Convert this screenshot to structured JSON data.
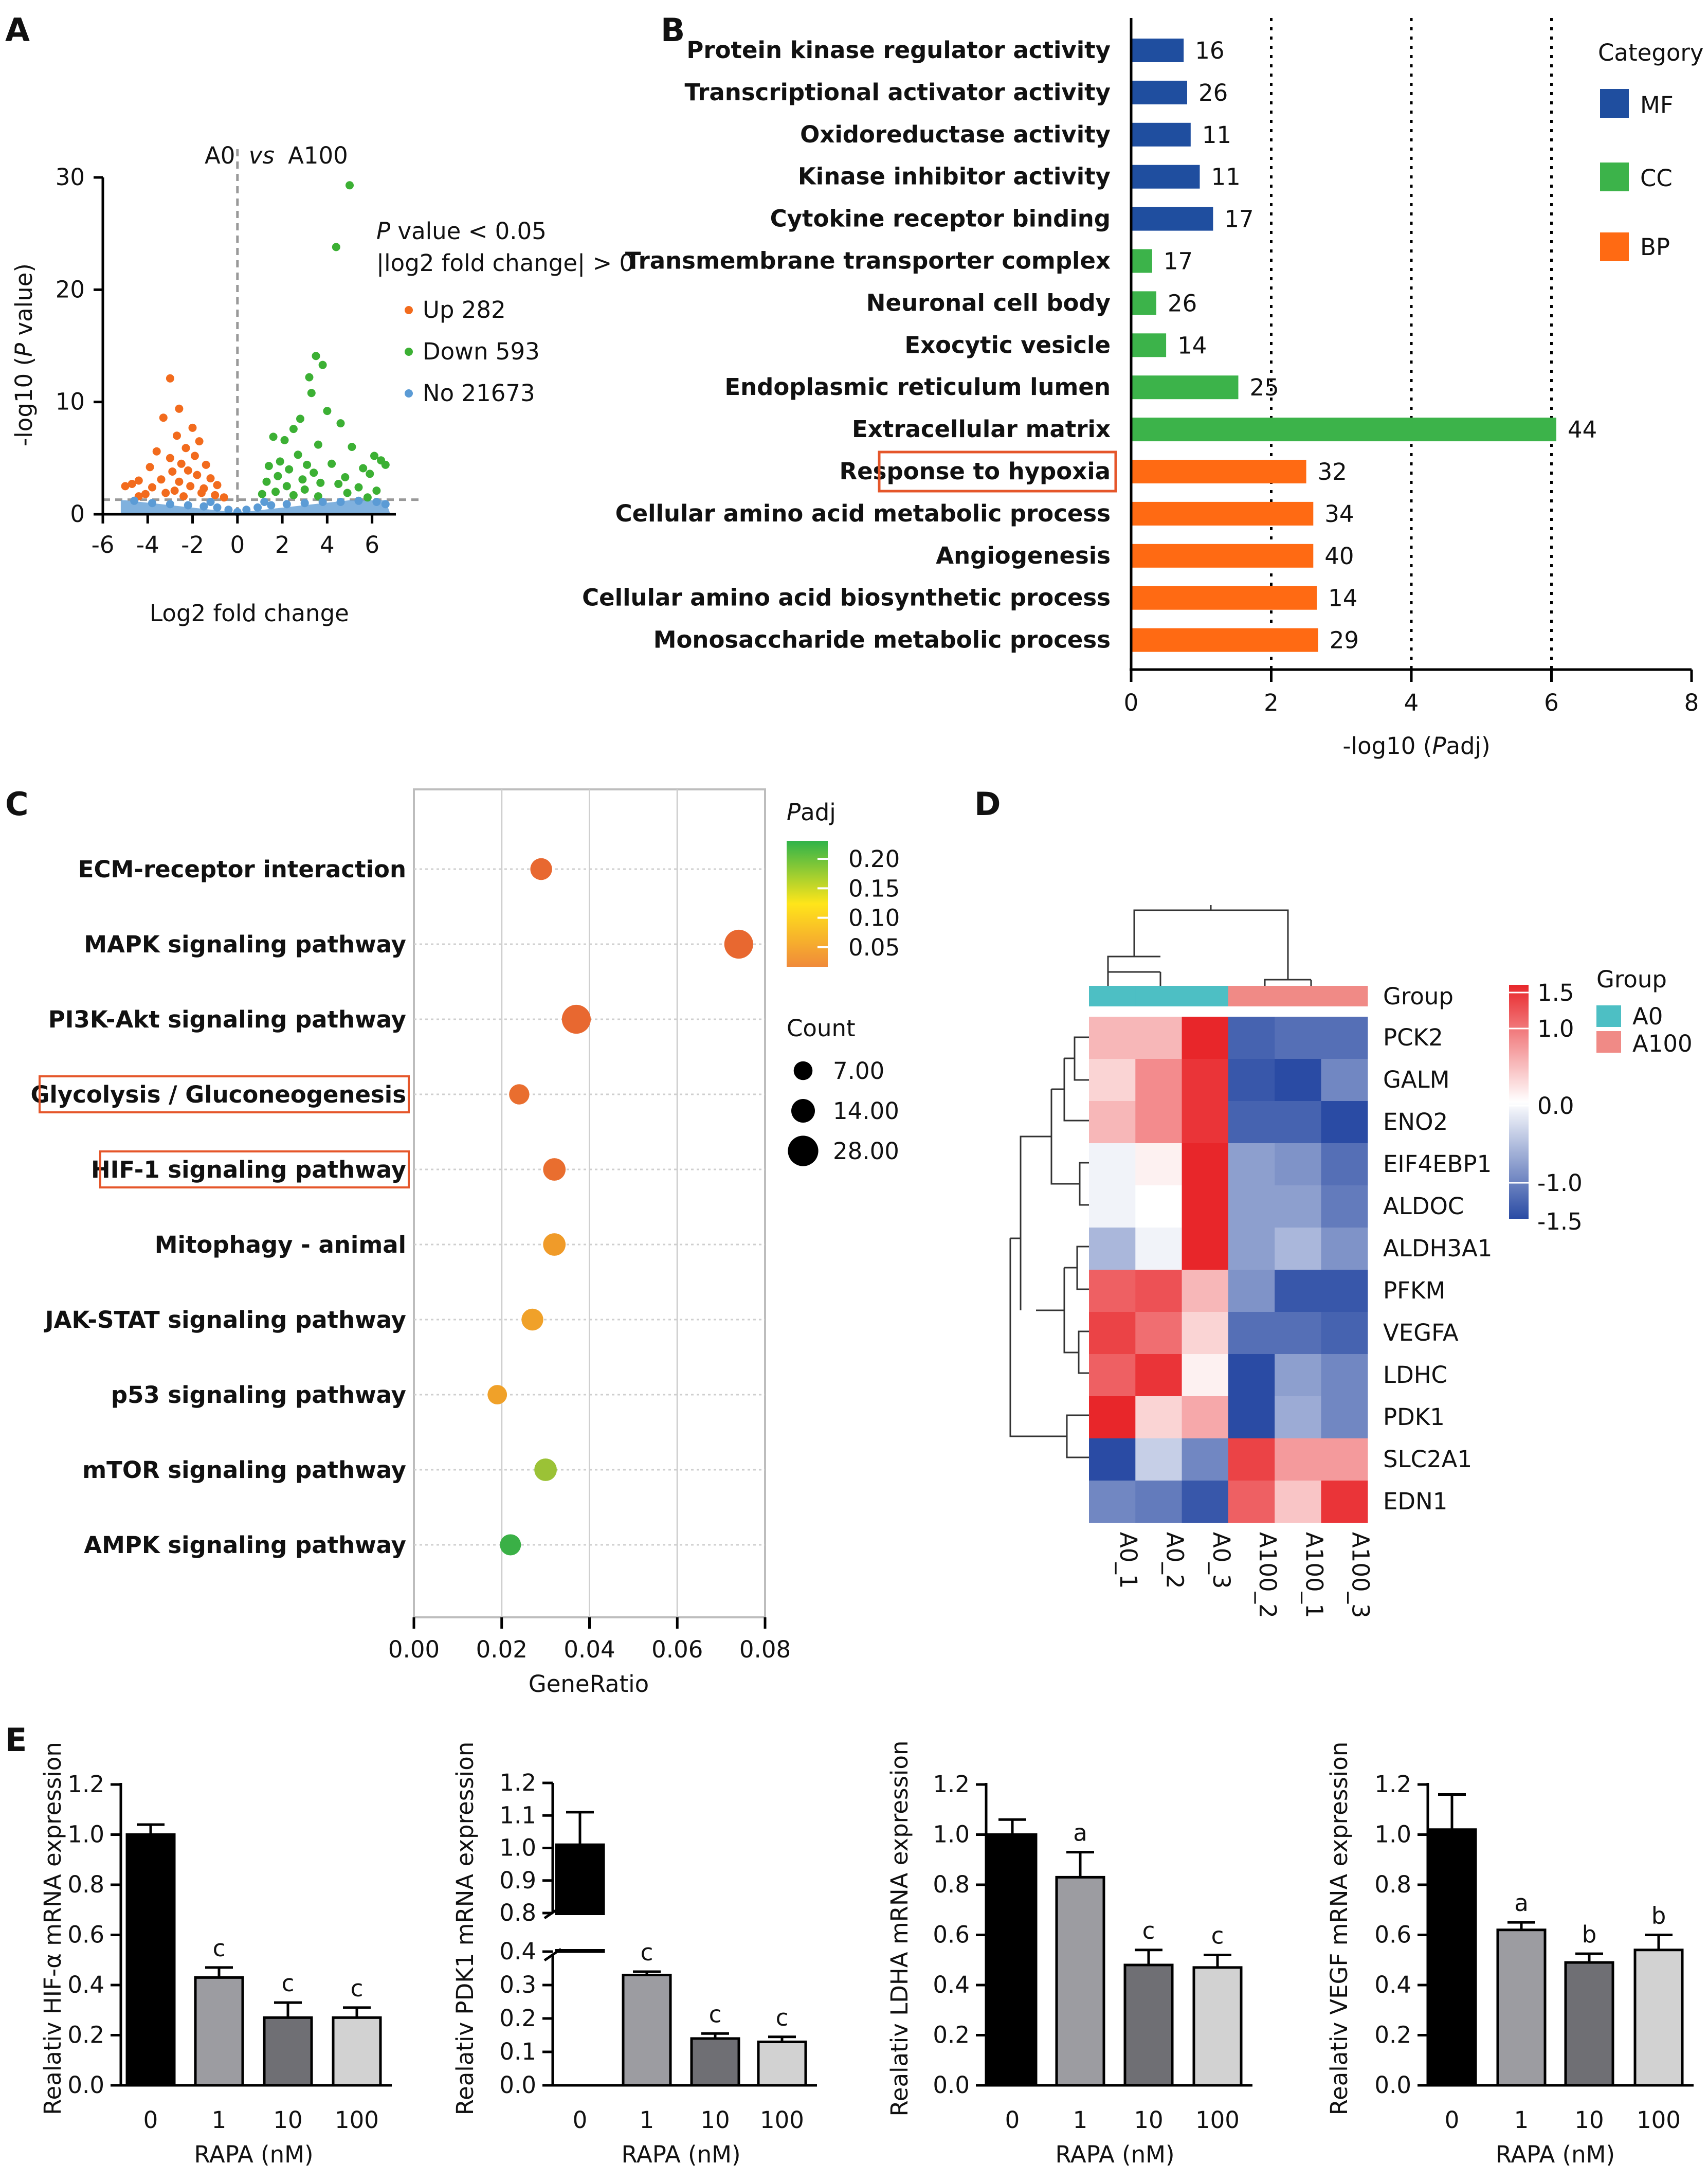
{
  "panels": {
    "A": {
      "letter": "A",
      "comparison": {
        "a": "A0",
        "vs": "vs",
        "b": "A100"
      },
      "criteria": {
        "p_italic": "P",
        "p_rest": " value < 0.05",
        "fc": "|log2 fold change| > 0"
      },
      "legend": [
        {
          "label": "Up 282",
          "color": "#f26b1d"
        },
        {
          "label": "Down 593",
          "color": "#3cb034"
        },
        {
          "label": "No 21673",
          "color": "#5b9bd5"
        }
      ]
    },
    "B": {
      "letter": "B",
      "legend_title": "Category"
    },
    "C": {
      "letter": "C",
      "legend_title_italic": "P",
      "legend_title_rest": "adj",
      "count_title": "Count"
    },
    "D": {
      "letter": "D",
      "group_label": "Group",
      "legend_title": "Group"
    },
    "E": {
      "letter": "E",
      "xlabel": "RAPA (nM)"
    }
  },
  "chart_data": [
    {
      "id": "volcano",
      "type": "scatter",
      "xlabel": "Log2 fold change",
      "ylabel_pre": "-log10 (",
      "ylabel_italic": "P",
      "ylabel_post": " value)",
      "xlim": [
        -6,
        7
      ],
      "ylim": [
        0,
        30
      ],
      "xticks": [
        -6,
        -4,
        -2,
        0,
        2,
        4,
        6
      ],
      "yticks": [
        0,
        10,
        20,
        30
      ],
      "thresholds": {
        "x": 0,
        "y": 1.3
      },
      "series": [
        {
          "name": "Up 282",
          "color": "#f26b1d",
          "points": [
            [
              -3.0,
              12.1
            ],
            [
              -2.6,
              9.4
            ],
            [
              -2.0,
              7.7
            ],
            [
              -2.7,
              7.0
            ],
            [
              -3.3,
              8.6
            ],
            [
              -1.7,
              6.5
            ],
            [
              -3.6,
              5.6
            ],
            [
              -2.3,
              5.9
            ],
            [
              -3.0,
              5.0
            ],
            [
              -1.9,
              5.2
            ],
            [
              -2.5,
              4.5
            ],
            [
              -3.9,
              4.2
            ],
            [
              -1.4,
              4.4
            ],
            [
              -2.9,
              3.8
            ],
            [
              -2.2,
              3.9
            ],
            [
              -3.4,
              3.1
            ],
            [
              -1.8,
              3.5
            ],
            [
              -4.4,
              3.0
            ],
            [
              -1.2,
              3.2
            ],
            [
              -2.6,
              2.9
            ],
            [
              -5.0,
              2.5
            ],
            [
              -4.7,
              2.7
            ],
            [
              -3.8,
              2.4
            ],
            [
              -2.1,
              2.5
            ],
            [
              -1.5,
              2.3
            ],
            [
              -0.9,
              2.6
            ],
            [
              -2.8,
              2.1
            ],
            [
              -3.2,
              1.9
            ],
            [
              -4.1,
              1.8
            ],
            [
              -1.0,
              1.7
            ],
            [
              -0.6,
              1.5
            ],
            [
              -2.4,
              1.6
            ],
            [
              -4.4,
              1.6
            ],
            [
              -1.6,
              1.9
            ]
          ]
        },
        {
          "name": "Down 593",
          "color": "#3cb034",
          "points": [
            [
              5.0,
              29.3
            ],
            [
              4.4,
              23.8
            ],
            [
              3.5,
              14.1
            ],
            [
              3.8,
              13.3
            ],
            [
              3.2,
              12.2
            ],
            [
              3.3,
              10.8
            ],
            [
              4.0,
              9.2
            ],
            [
              4.6,
              8.1
            ],
            [
              2.8,
              8.5
            ],
            [
              2.5,
              7.6
            ],
            [
              3.6,
              6.2
            ],
            [
              5.1,
              6.0
            ],
            [
              6.1,
              5.2
            ],
            [
              6.4,
              4.8
            ],
            [
              2.1,
              6.6
            ],
            [
              1.6,
              6.9
            ],
            [
              2.7,
              5.3
            ],
            [
              3.1,
              4.4
            ],
            [
              4.2,
              4.5
            ],
            [
              5.6,
              4.1
            ],
            [
              1.9,
              4.7
            ],
            [
              2.3,
              4.0
            ],
            [
              1.4,
              4.3
            ],
            [
              3.4,
              3.7
            ],
            [
              4.8,
              3.3
            ],
            [
              5.9,
              3.6
            ],
            [
              6.6,
              4.4
            ],
            [
              2.9,
              3.1
            ],
            [
              1.8,
              3.4
            ],
            [
              3.7,
              2.8
            ],
            [
              4.5,
              2.7
            ],
            [
              5.4,
              2.4
            ],
            [
              2.2,
              2.5
            ],
            [
              1.3,
              2.9
            ],
            [
              3.0,
              2.2
            ],
            [
              6.2,
              2.1
            ],
            [
              1.7,
              2.0
            ],
            [
              4.9,
              1.9
            ],
            [
              2.5,
              1.7
            ],
            [
              3.6,
              1.6
            ],
            [
              1.1,
              1.8
            ],
            [
              5.8,
              1.5
            ]
          ]
        },
        {
          "name": "No 21673",
          "color": "#5b9bd5",
          "points": [
            [
              -4.6,
              1.2
            ],
            [
              -3.8,
              1.0
            ],
            [
              -3.0,
              0.9
            ],
            [
              -2.2,
              0.8
            ],
            [
              -1.5,
              0.7
            ],
            [
              -0.9,
              0.6
            ],
            [
              -0.4,
              0.4
            ],
            [
              0.0,
              0.2
            ],
            [
              0.4,
              0.4
            ],
            [
              0.9,
              0.6
            ],
            [
              1.5,
              0.8
            ],
            [
              2.2,
              0.9
            ],
            [
              3.0,
              1.0
            ],
            [
              3.8,
              1.1
            ],
            [
              4.6,
              1.1
            ],
            [
              5.4,
              1.2
            ],
            [
              6.2,
              1.1
            ],
            [
              6.6,
              0.9
            ],
            [
              -1.2,
              1.1
            ],
            [
              1.2,
              1.1
            ]
          ]
        }
      ]
    },
    {
      "id": "go_enrichment",
      "type": "bar",
      "orientation": "horizontal",
      "xlabel_pre": "-log10 (",
      "xlabel_italic": "P",
      "xlabel_post": "adj)",
      "xlim": [
        0,
        8
      ],
      "xticks": [
        0,
        2,
        4,
        6,
        8
      ],
      "reference_lines": [
        2,
        4,
        6
      ],
      "categories": [
        "Protein kinase regulator activity",
        "Transcriptional activator activity",
        "Oxidoreductase activity",
        "Kinase inhibitor activity",
        "Cytokine receptor binding",
        "Transmembrane transporter complex",
        "Neuronal cell body",
        "Exocytic vesicle",
        "Endoplasmic reticulum lumen",
        "Extracellular matrix",
        "Response to hypoxia",
        "Cellular amino acid metabolic process",
        "Angiogenesis",
        "Cellular amino acid biosynthetic process",
        "Monosaccharide metabolic process"
      ],
      "values": [
        0.75,
        0.8,
        0.85,
        0.98,
        1.17,
        0.3,
        0.36,
        0.5,
        1.53,
        6.07,
        2.5,
        2.6,
        2.6,
        2.65,
        2.67
      ],
      "counts": [
        16,
        26,
        11,
        11,
        17,
        17,
        26,
        14,
        25,
        44,
        32,
        34,
        40,
        14,
        29
      ],
      "category_group": [
        "MF",
        "MF",
        "MF",
        "MF",
        "MF",
        "CC",
        "CC",
        "CC",
        "CC",
        "CC",
        "BP",
        "BP",
        "BP",
        "BP",
        "BP"
      ],
      "highlighted": "Response to hypoxia",
      "legend": [
        {
          "name": "MF",
          "color": "#1f4e9f"
        },
        {
          "name": "CC",
          "color": "#3cb34a"
        },
        {
          "name": "BP",
          "color": "#ff6a13"
        }
      ]
    },
    {
      "id": "kegg_dotplot",
      "type": "scatter",
      "xlabel": "GeneRatio",
      "xlim": [
        0.0,
        0.08
      ],
      "xticks": [
        "0.00",
        "0.02",
        "0.04",
        "0.06",
        "0.08"
      ],
      "categories": [
        "ECM-receptor interaction",
        "MAPK signaling pathway",
        "PI3K-Akt signaling pathway",
        "Glycolysis / Gluconeogenesis",
        "HIF-1 signaling pathway",
        "Mitophagy - animal",
        "JAK-STAT signaling pathway",
        "p53 signaling pathway",
        "mTOR signaling pathway",
        "AMPK signaling pathway"
      ],
      "gene_ratio": [
        0.029,
        0.074,
        0.037,
        0.024,
        0.032,
        0.032,
        0.027,
        0.019,
        0.03,
        0.022
      ],
      "count": [
        10,
        22,
        22,
        8,
        11,
        11,
        10,
        7,
        11,
        9
      ],
      "padj": [
        0.04,
        0.04,
        0.04,
        0.045,
        0.045,
        0.08,
        0.085,
        0.085,
        0.16,
        0.2
      ],
      "highlighted": [
        "Glycolysis / Gluconeogenesis",
        "HIF-1 signaling pathway"
      ],
      "colorbar_ticks": [
        "0.20",
        "0.15",
        "0.10",
        "0.05"
      ],
      "size_legend": [
        "7.00",
        "14.00",
        "28.00"
      ]
    },
    {
      "id": "heatmap",
      "type": "heatmap",
      "rows": [
        "PCK2",
        "GALM",
        "ENO2",
        "EIF4EBP1",
        "ALDOC",
        "ALDH3A1",
        "PFKM",
        "VEGFA",
        "LDHC",
        "PDK1",
        "SLC2A1",
        "EDN1"
      ],
      "columns": [
        "A0_1",
        "A0_2",
        "A0_3",
        "A100_2",
        "A100_1",
        "A100_3"
      ],
      "column_groups": [
        "A0",
        "A0",
        "A0",
        "A100",
        "A100",
        "A100"
      ],
      "values": [
        [
          0.5,
          0.5,
          1.5,
          -1.3,
          -1.2,
          -1.2
        ],
        [
          0.3,
          0.8,
          1.4,
          -1.4,
          -1.5,
          -1.0
        ],
        [
          0.5,
          0.8,
          1.4,
          -1.3,
          -1.3,
          -1.6
        ],
        [
          -0.1,
          0.1,
          1.5,
          -0.8,
          -0.9,
          -1.2
        ],
        [
          -0.1,
          0.0,
          1.5,
          -0.8,
          -0.8,
          -1.1
        ],
        [
          -0.6,
          -0.1,
          1.5,
          -0.8,
          -0.6,
          -0.9
        ],
        [
          1.1,
          1.2,
          0.5,
          -0.9,
          -1.4,
          -1.4
        ],
        [
          1.3,
          1.0,
          0.3,
          -1.2,
          -1.2,
          -1.3
        ],
        [
          1.1,
          1.4,
          0.1,
          -1.6,
          -0.8,
          -1.0
        ],
        [
          1.5,
          0.3,
          0.6,
          -1.6,
          -0.7,
          -1.0
        ],
        [
          -1.6,
          -0.4,
          -1.0,
          1.3,
          0.7,
          0.7
        ],
        [
          -1.0,
          -1.1,
          -1.4,
          1.1,
          0.4,
          1.4
        ]
      ],
      "color_range": [
        -1.5,
        1.5
      ],
      "colorbar_ticks": [
        "1.5",
        "1.0",
        "0.0",
        "-1.0",
        "-1.5"
      ],
      "group_legend": [
        {
          "name": "A0",
          "color": "#4dbfc4"
        },
        {
          "name": "A100",
          "color": "#f08a86"
        }
      ]
    },
    {
      "id": "qpcr_hif",
      "type": "bar",
      "ylabel": "Realativ HIF-α mRNA expression",
      "xlabel": "RAPA (nM)",
      "categories": [
        "0",
        "1",
        "10",
        "100"
      ],
      "values": [
        1.0,
        0.43,
        0.27,
        0.27
      ],
      "errors": [
        0.04,
        0.04,
        0.06,
        0.04
      ],
      "letters": [
        "",
        "c",
        "c",
        "c"
      ],
      "ylim": [
        0,
        1.2
      ],
      "yticks": [
        "0.0",
        "0.2",
        "0.4",
        "0.6",
        "0.8",
        "1.0",
        "1.2"
      ]
    },
    {
      "id": "qpcr_pdk1",
      "type": "bar",
      "ylabel": "Realativ PDK1 mRNA expression",
      "xlabel": "RAPA (nM)",
      "categories": [
        "0",
        "1",
        "10",
        "100"
      ],
      "values": [
        1.01,
        0.33,
        0.14,
        0.13
      ],
      "errors": [
        0.1,
        0.01,
        0.015,
        0.015
      ],
      "letters": [
        "",
        "c",
        "c",
        "c"
      ],
      "broken_axis": {
        "lower": [
          0,
          0.4
        ],
        "upper": [
          0.8,
          1.2
        ]
      },
      "yticks_lower": [
        "0.0",
        "0.1",
        "0.2",
        "0.3",
        "0.4"
      ],
      "yticks_upper": [
        "0.8",
        "0.9",
        "1.0",
        "1.1",
        "1.2"
      ]
    },
    {
      "id": "qpcr_ldha",
      "type": "bar",
      "ylabel": "Realativ LDHA mRNA expression",
      "xlabel": "RAPA (nM)",
      "categories": [
        "0",
        "1",
        "10",
        "100"
      ],
      "values": [
        1.0,
        0.83,
        0.48,
        0.47
      ],
      "errors": [
        0.06,
        0.1,
        0.06,
        0.05
      ],
      "letters": [
        "",
        "a",
        "c",
        "c"
      ],
      "ylim": [
        0,
        1.2
      ],
      "yticks": [
        "0.0",
        "0.2",
        "0.4",
        "0.6",
        "0.8",
        "1.0",
        "1.2"
      ]
    },
    {
      "id": "qpcr_vegf",
      "type": "bar",
      "ylabel": "Realativ VEGF mRNA expression",
      "xlabel": "RAPA (nM)",
      "categories": [
        "0",
        "1",
        "10",
        "100"
      ],
      "values": [
        1.02,
        0.62,
        0.49,
        0.54
      ],
      "errors": [
        0.14,
        0.03,
        0.035,
        0.06
      ],
      "letters": [
        "",
        "a",
        "b",
        "b"
      ],
      "ylim": [
        0,
        1.2
      ],
      "yticks": [
        "0.0",
        "0.2",
        "0.4",
        "0.6",
        "0.8",
        "1.0",
        "1.2"
      ]
    }
  ]
}
